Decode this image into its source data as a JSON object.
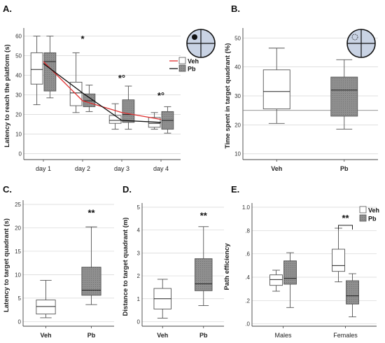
{
  "chart_data": [
    {
      "panel": "A.",
      "type": "box",
      "ylabel": "Latency to reach the platform (s)",
      "categories": [
        "day 1",
        "day 2",
        "day 3",
        "day 4"
      ],
      "ylim": [
        -3,
        62
      ],
      "yticks": [
        0,
        10,
        20,
        30,
        40,
        50,
        60
      ],
      "legend": [
        "Veh",
        "Pb"
      ],
      "series": [
        {
          "name": "Veh",
          "color": "#ffffff",
          "line_color": "#e03030",
          "boxes": [
            {
              "whislo": 25,
              "q1": 35.5,
              "med": 43,
              "q3": 51.5,
              "whishi": 60
            },
            {
              "whislo": 21,
              "q1": 24.5,
              "med": 31,
              "q3": 36.5,
              "whishi": 51.5
            },
            {
              "whislo": 12.5,
              "q1": 15.5,
              "med": 17,
              "q3": 19.5,
              "whishi": 25.5
            },
            {
              "whislo": 12.5,
              "q1": 13.5,
              "med": 15.5,
              "q3": 18.5,
              "whishi": 21
            }
          ],
          "mean": [
            47,
            27,
            21,
            17.5
          ]
        },
        {
          "name": "Pb",
          "color": "#8f8f8f",
          "line_color": "#111111",
          "boxes": [
            {
              "whislo": 28.5,
              "q1": 32,
              "med": 47,
              "q3": 51.5,
              "whishi": 60
            },
            {
              "whislo": 21.5,
              "q1": 24,
              "med": 27,
              "q3": 30.5,
              "whishi": 35
            },
            {
              "whislo": 12.5,
              "q1": 16,
              "med": 20,
              "q3": 27.5,
              "whishi": 34.5
            },
            {
              "whislo": 10.5,
              "q1": 12.5,
              "med": 17,
              "q3": 21.5,
              "whishi": 24
            }
          ],
          "mean": [
            46,
            31,
            17,
            16
          ]
        }
      ],
      "annotations": [
        {
          "text": "*",
          "category": "day 2",
          "y": 57
        },
        {
          "text": "*°",
          "category": "day 3",
          "y": 37
        },
        {
          "text": "*°",
          "category": "day 4",
          "y": 28
        }
      ]
    },
    {
      "panel": "B.",
      "type": "box",
      "ylabel": "Time spent in target quadrant (%)",
      "categories": [
        "Veh",
        "Pb"
      ],
      "ylim": [
        8,
        52
      ],
      "yticks": [
        10,
        20,
        30,
        40,
        50
      ],
      "reference_line": 25,
      "series": [
        {
          "name": "Veh",
          "color": "#ffffff",
          "boxes": [
            {
              "whislo": 20.5,
              "q1": 25.5,
              "med": 31.5,
              "q3": 39,
              "whishi": 46.5
            },
            {
              "whislo": 18.5,
              "q1": 23,
              "med": 32,
              "q3": 36.5,
              "whishi": 42.5
            }
          ]
        }
      ],
      "box_colors": [
        "#ffffff",
        "#8f8f8f"
      ]
    },
    {
      "panel": "C.",
      "type": "box",
      "ylabel": "Latency to target quadrant (s)",
      "categories": [
        "Veh",
        "Pb"
      ],
      "ylim": [
        -1,
        25
      ],
      "yticks": [
        0,
        5,
        10,
        15,
        20,
        25
      ],
      "box_colors": [
        "#ffffff",
        "#8f8f8f"
      ],
      "boxes": [
        {
          "whislo": 0.8,
          "q1": 1.6,
          "med": 3.2,
          "q3": 4.6,
          "whishi": 8.8
        },
        {
          "whislo": 3.6,
          "q1": 5.6,
          "med": 6.7,
          "q3": 11.6,
          "whishi": 20.2
        }
      ],
      "annotations": [
        {
          "text": "**",
          "category": "Pb",
          "y": 22.5
        }
      ]
    },
    {
      "panel": "D.",
      "type": "box",
      "ylabel": "Distance to target quadrant (m)",
      "categories": [
        "Veh",
        "Pb"
      ],
      "ylim": [
        -0.2,
        5
      ],
      "yticks": [
        0,
        1,
        2,
        3,
        4,
        5
      ],
      "box_colors": [
        "#ffffff",
        "#8f8f8f"
      ],
      "boxes": [
        {
          "whislo": 0.15,
          "q1": 0.55,
          "med": 1.0,
          "q3": 1.45,
          "whishi": 1.85
        },
        {
          "whislo": 0.7,
          "q1": 1.35,
          "med": 1.65,
          "q3": 2.75,
          "whishi": 4.15
        }
      ],
      "annotations": [
        {
          "text": "**",
          "category": "Pb",
          "y": 4.5
        }
      ]
    },
    {
      "panel": "E.",
      "type": "box",
      "ylabel": "Path efficiency",
      "categories": [
        "Males",
        "Females"
      ],
      "ylim": [
        -0.02,
        1.0
      ],
      "yticks": [
        0.0,
        0.2,
        0.4,
        0.6,
        0.8,
        1.0
      ],
      "ytick_labels": [
        ".0",
        ".2",
        ".4",
        ".6",
        ".8",
        "1.0"
      ],
      "legend": [
        "Veh",
        "Pb"
      ],
      "series": [
        {
          "name": "Veh",
          "color": "#ffffff",
          "boxes": [
            {
              "whislo": 0.28,
              "q1": 0.33,
              "med": 0.38,
              "q3": 0.42,
              "whishi": 0.46
            },
            {
              "whislo": 0.36,
              "q1": 0.45,
              "med": 0.5,
              "q3": 0.64,
              "whishi": 0.82
            }
          ]
        },
        {
          "name": "Pb",
          "color": "#8f8f8f",
          "boxes": [
            {
              "whislo": 0.14,
              "q1": 0.34,
              "med": 0.39,
              "q3": 0.54,
              "whishi": 0.61
            },
            {
              "whislo": 0.06,
              "q1": 0.17,
              "med": 0.24,
              "q3": 0.37,
              "whishi": 0.43
            }
          ]
        }
      ],
      "annotations": [
        {
          "text": "**",
          "category": "Females",
          "y": 0.88
        }
      ]
    }
  ]
}
